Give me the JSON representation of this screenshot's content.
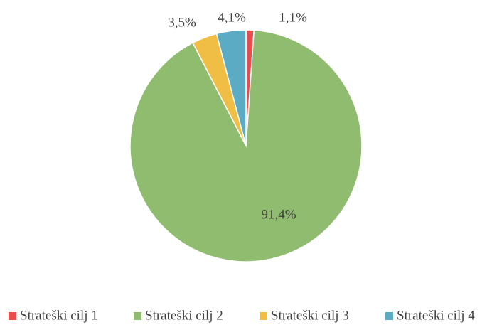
{
  "chart_data": {
    "type": "pie",
    "categories": [
      "Strateški cilj 1",
      "Strateški cilj 2",
      "Strateški cilj 3",
      "Strateški cilj 4"
    ],
    "values": [
      1.1,
      91.4,
      3.5,
      4.1
    ],
    "value_labels": [
      "1,1%",
      "91,4%",
      "3,5%",
      "4,1%"
    ],
    "colors": [
      "#e84c4c",
      "#8fbc6f",
      "#f0bd45",
      "#5aabc3"
    ],
    "legend": "bottom"
  }
}
